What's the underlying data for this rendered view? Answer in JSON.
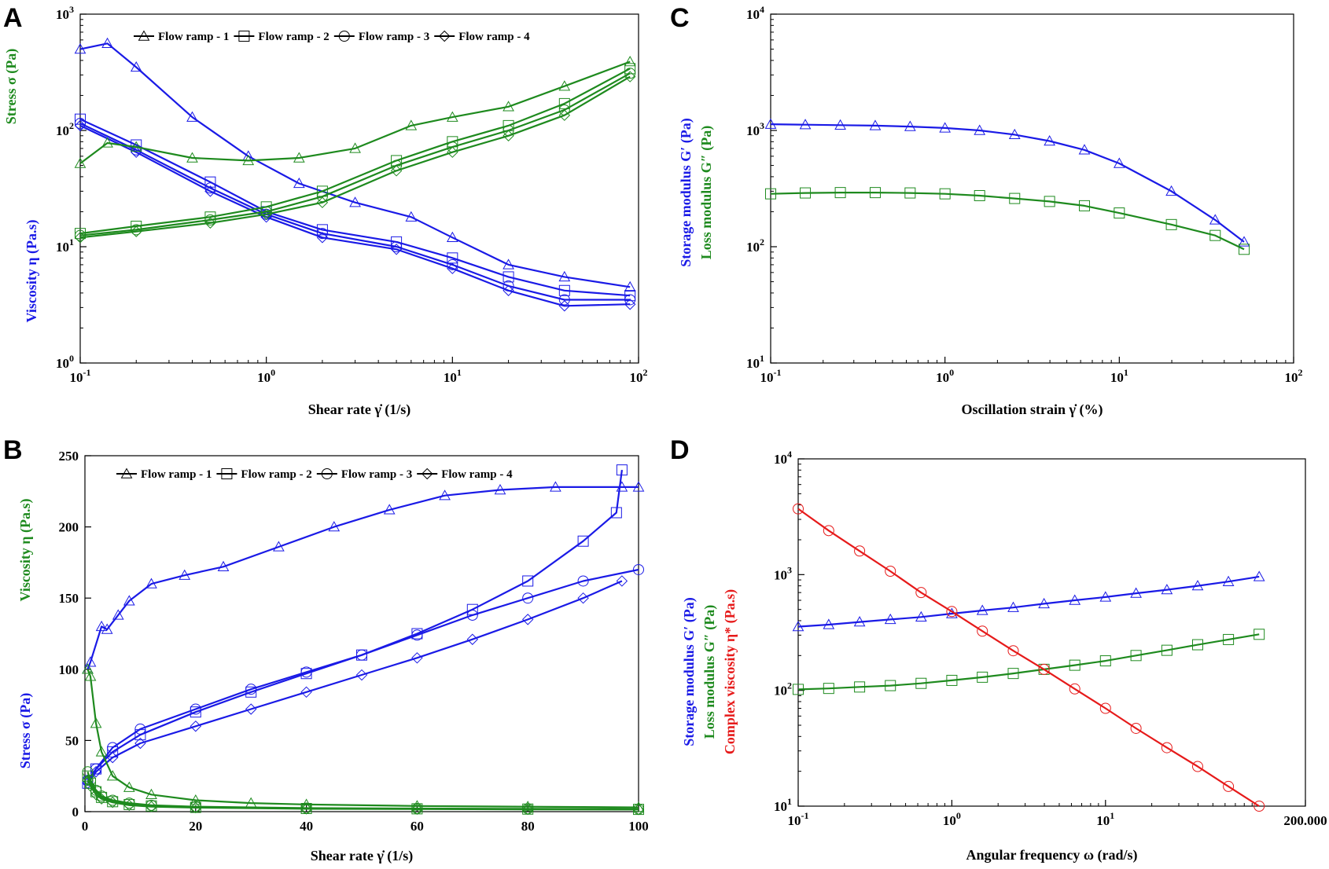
{
  "figure": {
    "panel_labels": [
      "A",
      "B",
      "C",
      "D"
    ]
  },
  "colors": {
    "blue": "#1a1ae6",
    "green": "#1e8a1e",
    "red": "#e61a1a"
  },
  "chart_data": [
    {
      "id": "A",
      "type": "line",
      "xscale": "log",
      "yscale": "log",
      "xlim": [
        0.1,
        100
      ],
      "ylim": [
        1,
        1000
      ],
      "xticks": [
        {
          "v": 0.1,
          "b": "10",
          "e": "-1"
        },
        {
          "v": 1,
          "b": "10",
          "e": "0"
        },
        {
          "v": 10,
          "b": "10",
          "e": "1"
        },
        {
          "v": 100,
          "b": "10",
          "e": "2"
        }
      ],
      "yticks": [
        {
          "v": 1,
          "b": "10",
          "e": "0"
        },
        {
          "v": 10,
          "b": "10",
          "e": "1"
        },
        {
          "v": 100,
          "b": "10",
          "e": "2"
        },
        {
          "v": 1000,
          "b": "10",
          "e": "3"
        }
      ],
      "xlabel": "Shear rate γ̇ (1/s)",
      "ylabels": [
        {
          "text": "Stress σ (Pa)",
          "color": "green"
        },
        {
          "text": "Viscosity η (Pa.s)",
          "color": "blue"
        }
      ],
      "legend": [
        "Flow ramp - 1",
        "Flow ramp - 2",
        "Flow ramp - 3",
        "Flow ramp - 4"
      ],
      "legend_markers": [
        "triangle",
        "square",
        "circle",
        "diamond"
      ],
      "series": [
        {
          "name": "Viscosity - Flow ramp - 1",
          "color": "blue",
          "marker": "triangle",
          "x": [
            0.1,
            0.14,
            0.2,
            0.4,
            0.8,
            1.5,
            3,
            6,
            10,
            20,
            40,
            90
          ],
          "y": [
            500,
            560,
            350,
            130,
            60,
            35,
            24,
            18,
            12,
            7,
            5.5,
            4.5
          ]
        },
        {
          "name": "Viscosity - Flow ramp - 2",
          "color": "blue",
          "marker": "square",
          "x": [
            0.1,
            0.2,
            0.5,
            1,
            2,
            5,
            10,
            20,
            40,
            90
          ],
          "y": [
            125,
            75,
            36,
            20,
            14,
            11,
            8,
            5.5,
            4.2,
            3.8
          ]
        },
        {
          "name": "Viscosity - Flow ramp - 3",
          "color": "blue",
          "marker": "circle",
          "x": [
            0.1,
            0.2,
            0.5,
            1,
            2,
            5,
            10,
            20,
            40,
            90
          ],
          "y": [
            115,
            68,
            32,
            19,
            13,
            10,
            7,
            4.6,
            3.5,
            3.5
          ]
        },
        {
          "name": "Viscosity - Flow ramp - 4",
          "color": "blue",
          "marker": "diamond",
          "x": [
            0.1,
            0.2,
            0.5,
            1,
            2,
            5,
            10,
            20,
            40,
            90
          ],
          "y": [
            110,
            65,
            30,
            18,
            12,
            9.5,
            6.5,
            4.2,
            3.1,
            3.2
          ]
        },
        {
          "name": "Stress - Flow ramp - 1",
          "color": "green",
          "marker": "triangle",
          "x": [
            0.1,
            0.14,
            0.2,
            0.4,
            0.8,
            1.5,
            3,
            6,
            10,
            20,
            40,
            90
          ],
          "y": [
            52,
            78,
            72,
            58,
            55,
            58,
            70,
            110,
            130,
            160,
            240,
            390
          ]
        },
        {
          "name": "Stress - Flow ramp - 2",
          "color": "green",
          "marker": "square",
          "x": [
            0.1,
            0.2,
            0.5,
            1,
            2,
            5,
            10,
            20,
            40,
            90
          ],
          "y": [
            13,
            15,
            18,
            22,
            30,
            55,
            80,
            110,
            170,
            340
          ]
        },
        {
          "name": "Stress - Flow ramp - 3",
          "color": "green",
          "marker": "circle",
          "x": [
            0.1,
            0.2,
            0.5,
            1,
            2,
            5,
            10,
            20,
            40,
            90
          ],
          "y": [
            12.5,
            14,
            17,
            20,
            27,
            50,
            72,
            100,
            150,
            310
          ]
        },
        {
          "name": "Stress - Flow ramp - 4",
          "color": "green",
          "marker": "diamond",
          "x": [
            0.1,
            0.2,
            0.5,
            1,
            2,
            5,
            10,
            20,
            40,
            90
          ],
          "y": [
            12,
            13.5,
            16,
            19,
            24,
            45,
            65,
            90,
            135,
            290
          ]
        }
      ]
    },
    {
      "id": "B",
      "type": "line",
      "xscale": "linear",
      "yscale": "linear",
      "xlim": [
        0,
        100
      ],
      "ylim": [
        0,
        250
      ],
      "xticks": [
        {
          "v": 0,
          "t": "0"
        },
        {
          "v": 20,
          "t": "20"
        },
        {
          "v": 40,
          "t": "40"
        },
        {
          "v": 60,
          "t": "60"
        },
        {
          "v": 80,
          "t": "80"
        },
        {
          "v": 100,
          "t": "100"
        }
      ],
      "yticks": [
        {
          "v": 0,
          "t": "0"
        },
        {
          "v": 50,
          "t": "50"
        },
        {
          "v": 100,
          "t": "100"
        },
        {
          "v": 150,
          "t": "150"
        },
        {
          "v": 200,
          "t": "200"
        },
        {
          "v": 250,
          "t": "250"
        }
      ],
      "xlabel": "Shear rate γ̇ (1/s)",
      "ylabels": [
        {
          "text": "Viscosity η (Pa.s)",
          "color": "green",
          "pos": "top"
        },
        {
          "text": "Stress σ (Pa)",
          "color": "blue",
          "pos": "bottom"
        }
      ],
      "legend": [
        "Flow ramp - 1",
        "Flow ramp - 2",
        "Flow ramp - 3",
        "Flow ramp - 4"
      ],
      "legend_markers": [
        "triangle",
        "square",
        "circle",
        "diamond"
      ],
      "series": [
        {
          "name": "Stress - Flow ramp - 1",
          "color": "blue",
          "marker": "triangle",
          "x": [
            0.5,
            1,
            3,
            4,
            6,
            8,
            12,
            18,
            25,
            35,
            45,
            55,
            65,
            75,
            85,
            97,
            100
          ],
          "y": [
            100,
            105,
            130,
            128,
            138,
            148,
            160,
            166,
            172,
            186,
            200,
            212,
            222,
            226,
            228,
            228,
            228
          ]
        },
        {
          "name": "Stress - Flow ramp - 2",
          "color": "blue",
          "marker": "square",
          "x": [
            0.5,
            2,
            5,
            10,
            20,
            30,
            40,
            50,
            60,
            70,
            80,
            90,
            96,
            97
          ],
          "y": [
            20,
            30,
            42,
            54,
            70,
            84,
            97,
            110,
            125,
            142,
            162,
            190,
            210,
            240
          ]
        },
        {
          "name": "Stress - Flow ramp - 3",
          "color": "blue",
          "marker": "circle",
          "x": [
            0.5,
            2,
            5,
            10,
            20,
            30,
            40,
            50,
            60,
            70,
            80,
            90,
            100
          ],
          "y": [
            22,
            30,
            45,
            58,
            72,
            86,
            98,
            110,
            124,
            138,
            150,
            162,
            170
          ]
        },
        {
          "name": "Stress - Flow ramp - 4",
          "color": "blue",
          "marker": "diamond",
          "x": [
            0.5,
            2,
            5,
            10,
            20,
            30,
            40,
            50,
            60,
            70,
            80,
            90,
            97
          ],
          "y": [
            20,
            28,
            38,
            48,
            60,
            72,
            84,
            96,
            108,
            121,
            135,
            150,
            162
          ]
        },
        {
          "name": "Viscosity - Flow ramp - 1",
          "color": "green",
          "marker": "triangle",
          "x": [
            0.5,
            1,
            2,
            3,
            5,
            8,
            12,
            20,
            30,
            40,
            60,
            80,
            100
          ],
          "y": [
            100,
            95,
            62,
            42,
            25,
            17,
            12,
            8,
            6,
            5,
            4,
            3.5,
            3
          ]
        },
        {
          "name": "Viscosity - Flow ramp - 2",
          "color": "green",
          "marker": "square",
          "x": [
            0.5,
            1,
            2,
            3,
            5,
            8,
            12,
            20,
            40,
            60,
            80,
            100
          ],
          "y": [
            25,
            20,
            14,
            10,
            7,
            5,
            4,
            3,
            2.2,
            2,
            1.8,
            1.6
          ]
        },
        {
          "name": "Viscosity - Flow ramp - 3",
          "color": "green",
          "marker": "circle",
          "x": [
            0.5,
            1,
            2,
            3,
            5,
            8,
            12,
            20,
            40,
            60,
            80,
            100
          ],
          "y": [
            28,
            22,
            15,
            11,
            8,
            6,
            4.5,
            3.5,
            2.5,
            2.2,
            2,
            1.8
          ]
        },
        {
          "name": "Viscosity - Flow ramp - 4",
          "color": "green",
          "marker": "diamond",
          "x": [
            0.5,
            1,
            2,
            3,
            5,
            8,
            12,
            20,
            40,
            60,
            80,
            100
          ],
          "y": [
            22,
            18,
            12,
            9,
            6.5,
            4.5,
            3.5,
            2.8,
            2,
            1.8,
            1.6,
            1.5
          ]
        }
      ]
    },
    {
      "id": "C",
      "type": "line",
      "xscale": "log",
      "yscale": "log",
      "xlim": [
        0.1,
        100
      ],
      "ylim": [
        10,
        10000
      ],
      "xticks": [
        {
          "v": 0.1,
          "b": "10",
          "e": "-1"
        },
        {
          "v": 1,
          "b": "10",
          "e": "0"
        },
        {
          "v": 10,
          "b": "10",
          "e": "1"
        },
        {
          "v": 100,
          "b": "10",
          "e": "2"
        }
      ],
      "yticks": [
        {
          "v": 10,
          "b": "10",
          "e": "1"
        },
        {
          "v": 100,
          "b": "10",
          "e": "2"
        },
        {
          "v": 1000,
          "b": "10",
          "e": "3"
        },
        {
          "v": 10000,
          "b": "10",
          "e": "4"
        }
      ],
      "xlabel": "Oscillation strain γ̇ (%)",
      "ylabels": [
        {
          "text": "Storage modulus G′ (Pa)",
          "color": "blue"
        },
        {
          "text": "Loss modulus G″ (Pa)",
          "color": "green"
        }
      ],
      "series": [
        {
          "name": "Storage modulus G′",
          "color": "blue",
          "marker": "triangle",
          "x": [
            0.1,
            0.158,
            0.251,
            0.398,
            0.631,
            1,
            1.58,
            2.51,
            3.98,
            6.31,
            10,
            19.9,
            35.5,
            52
          ],
          "y": [
            1130,
            1120,
            1110,
            1100,
            1080,
            1050,
            1000,
            920,
            810,
            680,
            520,
            300,
            170,
            110
          ]
        },
        {
          "name": "Loss modulus G″",
          "color": "green",
          "marker": "square",
          "x": [
            0.1,
            0.158,
            0.251,
            0.398,
            0.631,
            1,
            1.58,
            2.51,
            3.98,
            6.31,
            10,
            19.9,
            35.5,
            52
          ],
          "y": [
            285,
            290,
            292,
            292,
            290,
            285,
            275,
            260,
            245,
            225,
            195,
            155,
            125,
            95
          ]
        }
      ]
    },
    {
      "id": "D",
      "type": "line",
      "xscale": "log",
      "yscale": "log",
      "xlim": [
        0.1,
        200
      ],
      "ylim": [
        10,
        10000
      ],
      "xticks": [
        {
          "v": 0.1,
          "b": "10",
          "e": "-1"
        },
        {
          "v": 1,
          "b": "10",
          "e": "0"
        },
        {
          "v": 10,
          "b": "10",
          "e": "1"
        },
        {
          "v": 200,
          "t": "200.000"
        }
      ],
      "yticks": [
        {
          "v": 10,
          "b": "10",
          "e": "1"
        },
        {
          "v": 100,
          "b": "10",
          "e": "2"
        },
        {
          "v": 1000,
          "b": "10",
          "e": "3"
        },
        {
          "v": 10000,
          "b": "10",
          "e": "4"
        }
      ],
      "xlabel": "Angular frequency ω (rad/s)",
      "ylabels": [
        {
          "text": "Storage modulus G′ (Pa)",
          "color": "blue"
        },
        {
          "text": "Loss modulus G″ (Pa)",
          "color": "green"
        },
        {
          "text": "Complex viscosity η* (Pa.s)",
          "color": "red"
        }
      ],
      "series": [
        {
          "name": "Storage modulus G′",
          "color": "blue",
          "marker": "triangle",
          "x": [
            0.1,
            0.158,
            0.251,
            0.398,
            0.631,
            1,
            1.58,
            2.51,
            3.98,
            6.31,
            10,
            15.8,
            25.1,
            39.8,
            63.1,
            100
          ],
          "y": [
            355,
            370,
            390,
            410,
            430,
            460,
            490,
            520,
            560,
            600,
            640,
            690,
            740,
            800,
            870,
            960
          ]
        },
        {
          "name": "Loss modulus G″",
          "color": "green",
          "marker": "square",
          "x": [
            0.1,
            0.158,
            0.251,
            0.398,
            0.631,
            1,
            1.58,
            2.51,
            3.98,
            6.31,
            10,
            15.8,
            25.1,
            39.8,
            63.1,
            100
          ],
          "y": [
            102,
            104,
            107,
            110,
            115,
            122,
            130,
            140,
            152,
            165,
            180,
            200,
            222,
            248,
            275,
            305
          ]
        },
        {
          "name": "Complex viscosity η*",
          "color": "red",
          "marker": "circle",
          "x": [
            0.1,
            0.158,
            0.251,
            0.398,
            0.631,
            1,
            1.58,
            2.51,
            3.98,
            6.31,
            10,
            15.8,
            25.1,
            39.8,
            63.1,
            100
          ],
          "y": [
            3700,
            2400,
            1600,
            1070,
            700,
            480,
            325,
            220,
            152,
            103,
            70,
            47,
            32,
            22,
            14.8,
            10
          ]
        }
      ]
    }
  ]
}
